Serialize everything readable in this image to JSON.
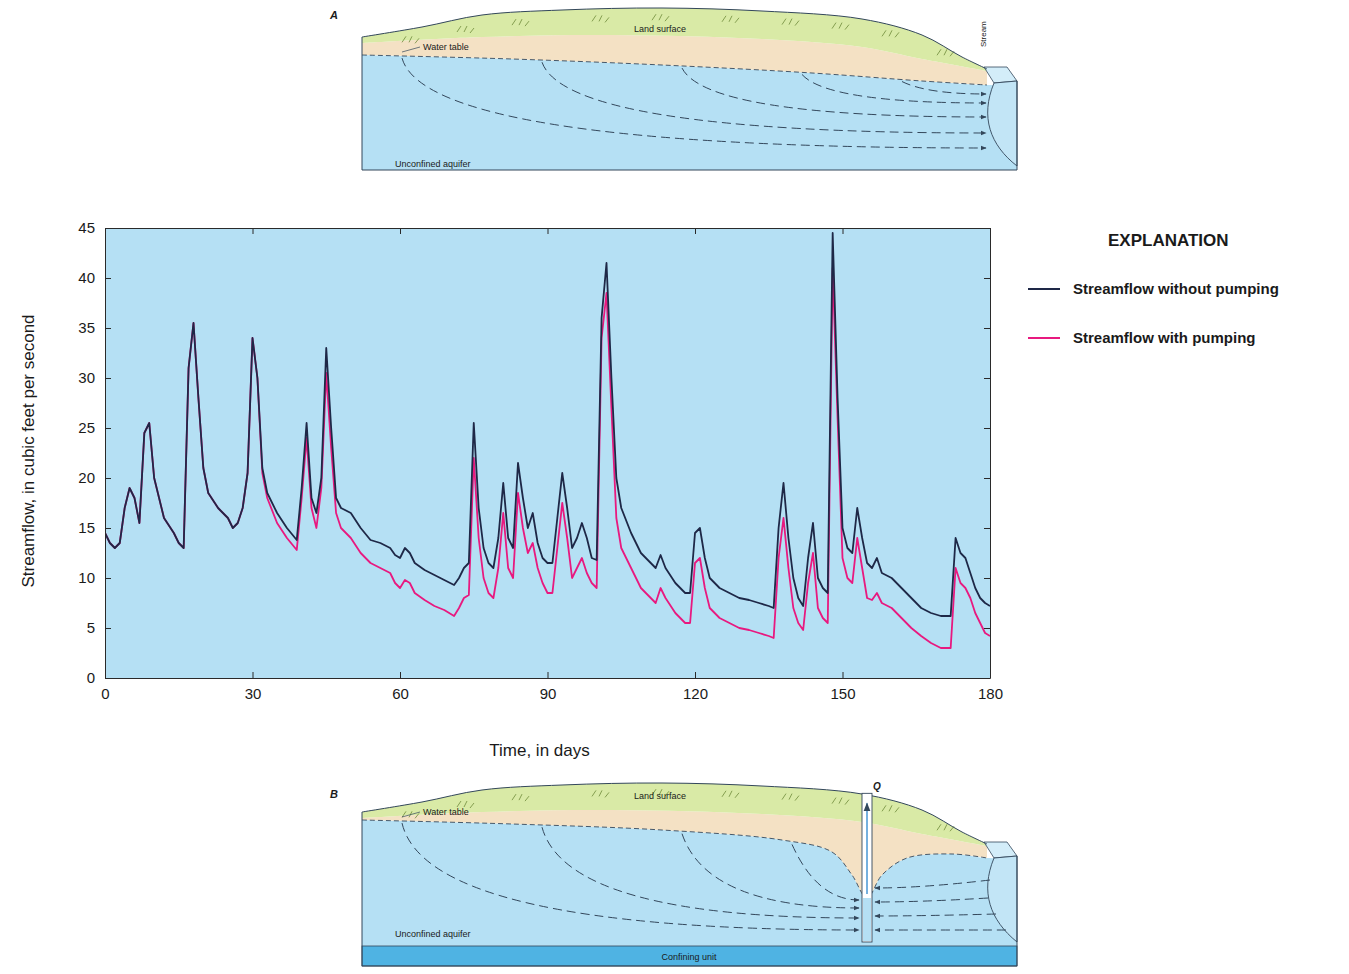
{
  "chart_data": {
    "type": "line",
    "x_label": "Time, in days",
    "y_label": "Streamflow, in cubic feet per second",
    "legend_title": "EXPLANATION",
    "legend": "right",
    "xlim": [
      0,
      180
    ],
    "xticks": [
      0,
      30,
      60,
      90,
      120,
      150,
      180
    ],
    "ylim": [
      0,
      45
    ],
    "yticks": [
      0,
      5,
      10,
      15,
      20,
      25,
      30,
      35,
      40,
      45
    ],
    "x": [
      0,
      1,
      2,
      3,
      4,
      5,
      6,
      7,
      8,
      9,
      10,
      12,
      14,
      15,
      16,
      17,
      18,
      19,
      20,
      21,
      23,
      25,
      26,
      27,
      28,
      29,
      30,
      31,
      32,
      33,
      35,
      37,
      39,
      40,
      41,
      42,
      43,
      44,
      45,
      46,
      47,
      48,
      50,
      52,
      54,
      56,
      58,
      59,
      60,
      61,
      62,
      63,
      65,
      67,
      69,
      71,
      72,
      73,
      74,
      75,
      76,
      77,
      78,
      79,
      80,
      81,
      82,
      83,
      84,
      85,
      86,
      87,
      88,
      89,
      90,
      91,
      92,
      93,
      94,
      95,
      96,
      97,
      98,
      99,
      100,
      101,
      102,
      103,
      104,
      105,
      107,
      109,
      111,
      112,
      113,
      114,
      116,
      118,
      119,
      120,
      121,
      122,
      123,
      125,
      127,
      129,
      131,
      133,
      135,
      136,
      137,
      138,
      139,
      140,
      141,
      142,
      143,
      144,
      145,
      146,
      147,
      148,
      149,
      150,
      151,
      152,
      153,
      154,
      155,
      156,
      157,
      158,
      160,
      162,
      164,
      166,
      168,
      170,
      172,
      173,
      174,
      175,
      176,
      177,
      178,
      179,
      180
    ],
    "series": [
      {
        "name": "Streamflow without pumping",
        "color": "#1e2847",
        "values": [
          14.5,
          13.5,
          13,
          13.5,
          17,
          19,
          18,
          15.5,
          24.5,
          25.5,
          20,
          16,
          14.5,
          13.5,
          13,
          31,
          35.5,
          28,
          21,
          18.5,
          17,
          16,
          15,
          15.5,
          17,
          20.5,
          34,
          30,
          21,
          18.5,
          16.5,
          15,
          13.8,
          19,
          25.5,
          18,
          16.5,
          20,
          33,
          25,
          18,
          17,
          16.5,
          15,
          13.8,
          13.5,
          13,
          12.3,
          12,
          13,
          12.5,
          11.5,
          10.8,
          10.3,
          9.8,
          9.3,
          10,
          11,
          11.5,
          25.5,
          17,
          13,
          11.5,
          11,
          14,
          19.5,
          14,
          13,
          21.5,
          18,
          15,
          16.5,
          13.5,
          12,
          11.5,
          11.5,
          16,
          20.5,
          17,
          13,
          14,
          15.5,
          14,
          12,
          11.8,
          36,
          41.5,
          30,
          20,
          17,
          14.5,
          12.5,
          11.5,
          11,
          12.3,
          11,
          9.5,
          8.5,
          8.5,
          14.5,
          15,
          12,
          10,
          9,
          8.5,
          8,
          7.8,
          7.5,
          7.2,
          7,
          15,
          19.5,
          14,
          10,
          8,
          7.2,
          12,
          15.5,
          10,
          9,
          8.5,
          44.5,
          28,
          15,
          13,
          12.5,
          17,
          14,
          11.5,
          11,
          12,
          10.5,
          10,
          9,
          8,
          7,
          6.5,
          6.2,
          6.2,
          14,
          12.5,
          12,
          10.5,
          9,
          8,
          7.5,
          7.2
        ]
      },
      {
        "name": "Streamflow with pumping",
        "color": "#e8197f",
        "values": [
          14.5,
          13.5,
          13,
          13.5,
          17,
          19,
          18,
          15.5,
          24.5,
          25.5,
          20,
          16,
          14.5,
          13.5,
          13,
          31,
          35.5,
          28,
          21,
          18.5,
          17,
          16,
          15,
          15.5,
          17,
          20.5,
          34,
          30,
          20.5,
          18,
          15.5,
          14,
          12.8,
          18,
          24,
          17,
          15,
          19,
          30.5,
          23,
          16.5,
          15,
          14,
          12.5,
          11.5,
          11,
          10.5,
          9.5,
          9,
          9.8,
          9.5,
          8.5,
          7.8,
          7.2,
          6.8,
          6.2,
          7,
          8,
          8.3,
          22,
          14,
          10,
          8.5,
          8,
          11,
          16.5,
          11,
          10,
          18.5,
          15,
          12.5,
          13.5,
          11,
          9.5,
          8.5,
          8.5,
          13,
          17.5,
          14,
          10,
          11,
          12,
          10.5,
          9.5,
          9,
          34,
          38.5,
          27,
          16,
          13,
          11,
          9,
          8,
          7.5,
          9,
          8,
          6.5,
          5.5,
          5.5,
          11.5,
          12,
          9,
          7,
          6,
          5.5,
          5,
          4.8,
          4.5,
          4.2,
          4,
          12,
          16,
          11,
          7,
          5.5,
          4.8,
          9.5,
          12.5,
          7,
          6,
          5.5,
          41,
          26,
          12,
          10,
          9.5,
          14,
          11,
          8,
          7.8,
          8.5,
          7.5,
          7,
          6,
          5,
          4.2,
          3.5,
          3,
          3,
          11,
          9.5,
          9,
          8,
          6.5,
          5.5,
          4.5,
          4.2
        ]
      }
    ]
  },
  "diagrams": {
    "top": {
      "letter": "A",
      "land_surface": "Land surface",
      "water_table": "Water table",
      "stream": "Stream",
      "aquifer": "Unconfined aquifer"
    },
    "bottom": {
      "letter": "B",
      "land_surface": "Land surface",
      "water_table": "Water table",
      "well": "Q",
      "aquifer": "Unconfined aquifer",
      "confining_unit": "Confining unit"
    }
  }
}
